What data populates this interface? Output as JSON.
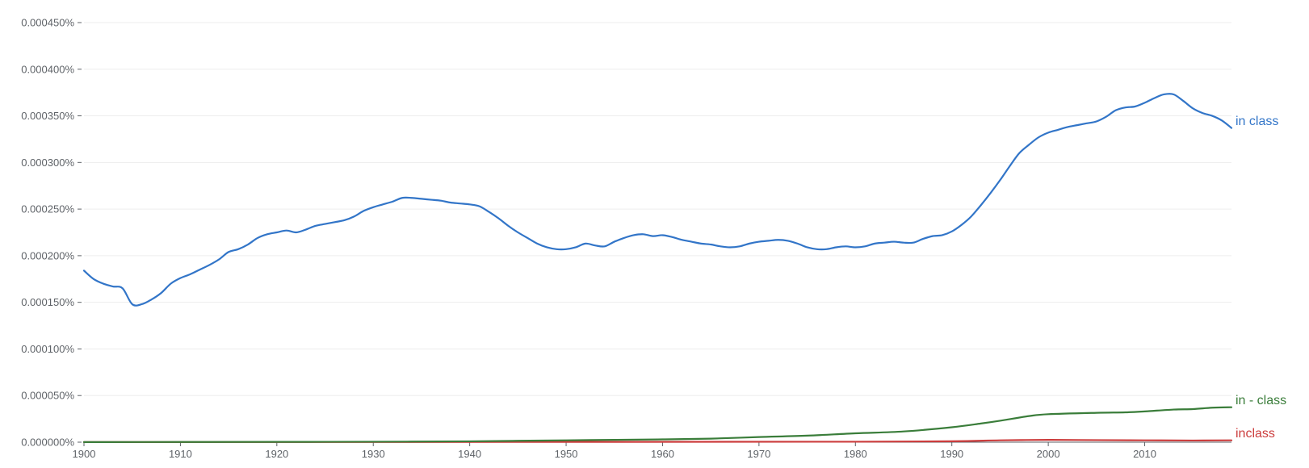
{
  "chart_data": {
    "type": "line",
    "title": "",
    "xlabel": "",
    "ylabel": "",
    "xlim": [
      1900,
      2019
    ],
    "ylim": [
      0,
      0.00045
    ],
    "grid": true,
    "legend": "labels at line ends",
    "x_ticks": [
      "1900",
      "1910",
      "1920",
      "1930",
      "1940",
      "1950",
      "1960",
      "1970",
      "1980",
      "1990",
      "2000",
      "2010"
    ],
    "y_ticks": [
      "0.000000%",
      "0.000050%",
      "0.000100%",
      "0.000150%",
      "0.000200%",
      "0.000250%",
      "0.000300%",
      "0.000350%",
      "0.000400%",
      "0.000450%"
    ],
    "series": [
      {
        "name": "in class",
        "color": "#3275c8",
        "points": [
          [
            1900,
            0.000184
          ],
          [
            1901,
            0.000175
          ],
          [
            1902,
            0.00017
          ],
          [
            1903,
            0.000167
          ],
          [
            1904,
            0.000165
          ],
          [
            1905,
            0.000148
          ],
          [
            1906,
            0.000148
          ],
          [
            1907,
            0.000153
          ],
          [
            1908,
            0.00016
          ],
          [
            1909,
            0.00017
          ],
          [
            1910,
            0.000176
          ],
          [
            1911,
            0.00018
          ],
          [
            1912,
            0.000185
          ],
          [
            1913,
            0.00019
          ],
          [
            1914,
            0.000196
          ],
          [
            1915,
            0.000204
          ],
          [
            1916,
            0.000207
          ],
          [
            1917,
            0.000212
          ],
          [
            1918,
            0.000219
          ],
          [
            1919,
            0.000223
          ],
          [
            1920,
            0.000225
          ],
          [
            1921,
            0.000227
          ],
          [
            1922,
            0.000225
          ],
          [
            1923,
            0.000228
          ],
          [
            1924,
            0.000232
          ],
          [
            1925,
            0.000234
          ],
          [
            1926,
            0.000236
          ],
          [
            1927,
            0.000238
          ],
          [
            1928,
            0.000242
          ],
          [
            1929,
            0.000248
          ],
          [
            1930,
            0.000252
          ],
          [
            1931,
            0.000255
          ],
          [
            1932,
            0.000258
          ],
          [
            1933,
            0.000262
          ],
          [
            1934,
            0.000262
          ],
          [
            1935,
            0.000261
          ],
          [
            1936,
            0.00026
          ],
          [
            1937,
            0.000259
          ],
          [
            1938,
            0.000257
          ],
          [
            1939,
            0.000256
          ],
          [
            1940,
            0.000255
          ],
          [
            1941,
            0.000253
          ],
          [
            1942,
            0.000247
          ],
          [
            1943,
            0.00024
          ],
          [
            1944,
            0.000232
          ],
          [
            1945,
            0.000225
          ],
          [
            1946,
            0.000219
          ],
          [
            1947,
            0.000213
          ],
          [
            1948,
            0.000209
          ],
          [
            1949,
            0.000207
          ],
          [
            1950,
            0.000207
          ],
          [
            1951,
            0.000209
          ],
          [
            1952,
            0.000213
          ],
          [
            1953,
            0.000211
          ],
          [
            1954,
            0.00021
          ],
          [
            1955,
            0.000215
          ],
          [
            1956,
            0.000219
          ],
          [
            1957,
            0.000222
          ],
          [
            1958,
            0.000223
          ],
          [
            1959,
            0.000221
          ],
          [
            1960,
            0.000222
          ],
          [
            1961,
            0.00022
          ],
          [
            1962,
            0.000217
          ],
          [
            1963,
            0.000215
          ],
          [
            1964,
            0.000213
          ],
          [
            1965,
            0.000212
          ],
          [
            1966,
            0.00021
          ],
          [
            1967,
            0.000209
          ],
          [
            1968,
            0.00021
          ],
          [
            1969,
            0.000213
          ],
          [
            1970,
            0.000215
          ],
          [
            1971,
            0.000216
          ],
          [
            1972,
            0.000217
          ],
          [
            1973,
            0.000216
          ],
          [
            1974,
            0.000213
          ],
          [
            1975,
            0.000209
          ],
          [
            1976,
            0.000207
          ],
          [
            1977,
            0.000207
          ],
          [
            1978,
            0.000209
          ],
          [
            1979,
            0.00021
          ],
          [
            1980,
            0.000209
          ],
          [
            1981,
            0.00021
          ],
          [
            1982,
            0.000213
          ],
          [
            1983,
            0.000214
          ],
          [
            1984,
            0.000215
          ],
          [
            1985,
            0.000214
          ],
          [
            1986,
            0.000214
          ],
          [
            1987,
            0.000218
          ],
          [
            1988,
            0.000221
          ],
          [
            1989,
            0.000222
          ],
          [
            1990,
            0.000226
          ],
          [
            1991,
            0.000233
          ],
          [
            1992,
            0.000242
          ],
          [
            1993,
            0.000254
          ],
          [
            1994,
            0.000267
          ],
          [
            1995,
            0.000281
          ],
          [
            1996,
            0.000296
          ],
          [
            1997,
            0.00031
          ],
          [
            1998,
            0.000319
          ],
          [
            1999,
            0.000327
          ],
          [
            2000,
            0.000332
          ],
          [
            2001,
            0.000335
          ],
          [
            2002,
            0.000338
          ],
          [
            2003,
            0.00034
          ],
          [
            2004,
            0.000342
          ],
          [
            2005,
            0.000344
          ],
          [
            2006,
            0.000349
          ],
          [
            2007,
            0.000356
          ],
          [
            2008,
            0.000359
          ],
          [
            2009,
            0.00036
          ],
          [
            2010,
            0.000364
          ],
          [
            2011,
            0.000369
          ],
          [
            2012,
            0.000373
          ],
          [
            2013,
            0.000373
          ],
          [
            2014,
            0.000366
          ],
          [
            2015,
            0.000358
          ],
          [
            2016,
            0.000353
          ],
          [
            2017,
            0.00035
          ],
          [
            2018,
            0.000345
          ],
          [
            2019,
            0.000337
          ]
        ]
      },
      {
        "name": "in - class",
        "color": "#3a7d3a",
        "points": [
          [
            1900,
            1e-07
          ],
          [
            1910,
            2e-07
          ],
          [
            1920,
            3e-07
          ],
          [
            1930,
            5e-07
          ],
          [
            1940,
            9e-07
          ],
          [
            1945,
            1.5e-06
          ],
          [
            1950,
            2e-06
          ],
          [
            1955,
            2.5e-06
          ],
          [
            1960,
            3e-06
          ],
          [
            1965,
            3.8e-06
          ],
          [
            1970,
            5.5e-06
          ],
          [
            1975,
            7e-06
          ],
          [
            1980,
            9.5e-06
          ],
          [
            1985,
            1.15e-05
          ],
          [
            1990,
            1.6e-05
          ],
          [
            1993,
            2e-05
          ],
          [
            1995,
            2.3e-05
          ],
          [
            1998,
            2.8e-05
          ],
          [
            2000,
            3e-05
          ],
          [
            2005,
            3.15e-05
          ],
          [
            2008,
            3.2e-05
          ],
          [
            2010,
            3.3e-05
          ],
          [
            2013,
            3.5e-05
          ],
          [
            2015,
            3.55e-05
          ],
          [
            2017,
            3.7e-05
          ],
          [
            2019,
            3.75e-05
          ]
        ]
      },
      {
        "name": "inclass",
        "color": "#cc3d3d",
        "points": [
          [
            1900,
            1e-07
          ],
          [
            1950,
            3e-07
          ],
          [
            1980,
            5e-07
          ],
          [
            1990,
            1e-06
          ],
          [
            1995,
            2e-06
          ],
          [
            2000,
            2.5e-06
          ],
          [
            2005,
            2.2e-06
          ],
          [
            2010,
            2e-06
          ],
          [
            2015,
            1.8e-06
          ],
          [
            2019,
            2e-06
          ]
        ]
      }
    ]
  }
}
